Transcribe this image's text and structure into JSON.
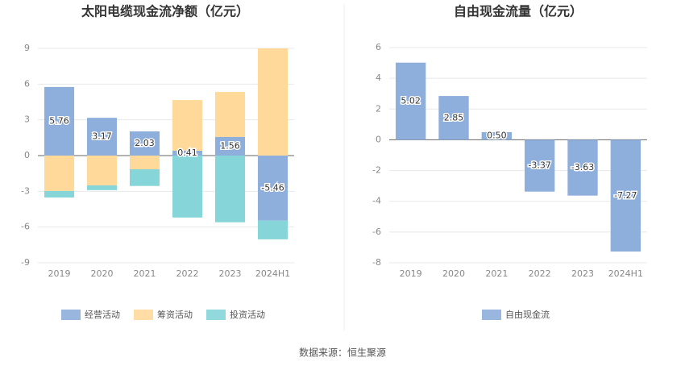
{
  "chart_data": [
    {
      "type": "stacked_bar",
      "title": "太阳电缆现金流净额（亿元）",
      "categories": [
        "2019",
        "2020",
        "2021",
        "2022",
        "2023",
        "2024H1"
      ],
      "series": [
        {
          "name": "经营活动",
          "color": "#8eaedc",
          "values": [
            5.76,
            3.17,
            2.03,
            0.41,
            1.56,
            -5.46
          ],
          "value_labels": [
            "5.76",
            "3.17",
            "2.03",
            "0.41",
            "1.56",
            "-5.46"
          ]
        },
        {
          "name": "筹资活动",
          "color": "#ffd99a",
          "values": [
            -2.97,
            -2.5,
            -1.15,
            4.25,
            3.78,
            9.0
          ]
        },
        {
          "name": "投资活动",
          "color": "#86d5d9",
          "values": [
            -0.55,
            -0.4,
            -1.4,
            -5.2,
            -5.6,
            -1.57
          ]
        }
      ],
      "ylim": [
        -9,
        9
      ],
      "yticks": [
        -9,
        -6,
        -3,
        0,
        3,
        6,
        9
      ],
      "grid": true
    },
    {
      "type": "bar",
      "title": "自由现金流量（亿元）",
      "categories": [
        "2019",
        "2020",
        "2021",
        "2022",
        "2023",
        "2024H1"
      ],
      "series": [
        {
          "name": "自由现金流",
          "color": "#8eaedc",
          "values": [
            5.02,
            2.85,
            0.5,
            -3.37,
            -3.63,
            -7.27
          ],
          "value_labels": [
            "5.02",
            "2.85",
            "0.50",
            "-3.37",
            "-3.63",
            "-7.27"
          ]
        }
      ],
      "ylim": [
        -8,
        6
      ],
      "yticks": [
        -8,
        -6,
        -4,
        -2,
        0,
        2,
        4,
        6
      ],
      "grid": true
    }
  ],
  "source": "数据来源：恒生聚源"
}
